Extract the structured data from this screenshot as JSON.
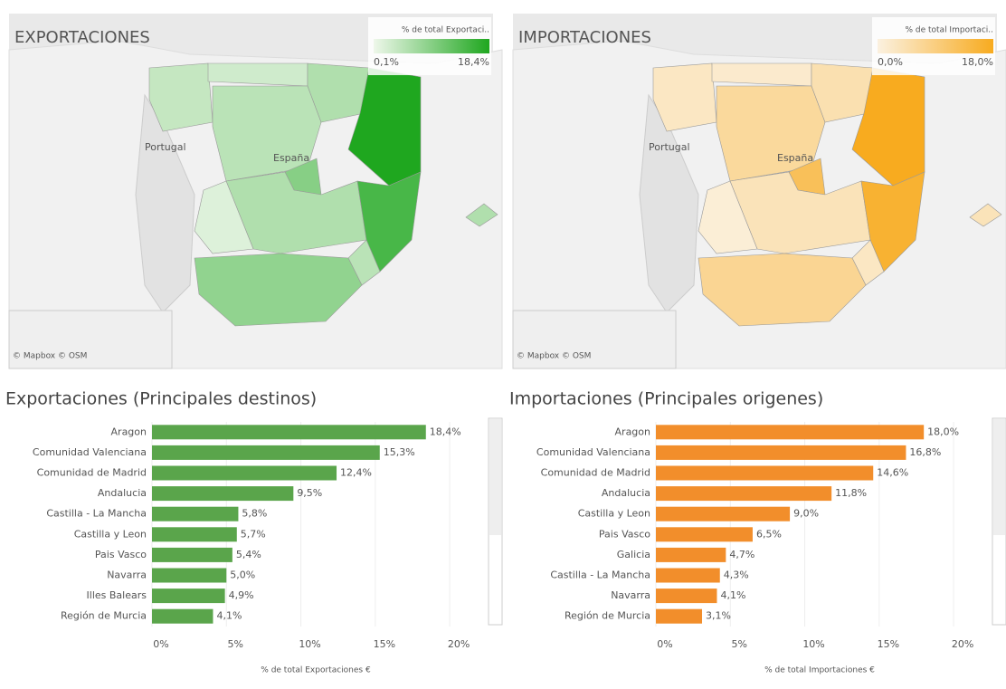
{
  "chart_data": [
    {
      "type": "map",
      "title": "EXPORTACIONES",
      "legend_title": "% de total Exportaci..",
      "color_low": "#eef7ea",
      "color": "#1fa71f",
      "legend_ticks": [
        {
          "value": 0.1,
          "label": "0,1%"
        },
        {
          "value": 18.4,
          "label": "18,4%"
        }
      ],
      "place_labels": [
        "Portugal",
        "España"
      ],
      "attribution": "© Mapbox © OSM"
    },
    {
      "type": "map",
      "title": "IMPORTACIONES",
      "legend_title": "% de total Importaci..",
      "color_low": "#fbf1e0",
      "color": "#f8ab1f",
      "legend_ticks": [
        {
          "value": 0.0,
          "label": "0,0%"
        },
        {
          "value": 18.0,
          "label": "18,0%"
        }
      ],
      "place_labels": [
        "Portugal",
        "España"
      ],
      "attribution": "© Mapbox © OSM"
    },
    {
      "type": "bar",
      "orientation": "horizontal",
      "title": "Exportaciones (Principales destinos)",
      "color": "#5aa54b",
      "categories": [
        "Aragon",
        "Comunidad Valenciana",
        "Comunidad de Madrid",
        "Andalucia",
        "Castilla - La Mancha",
        "Castilla y Leon",
        "Pais Vasco",
        "Navarra",
        "Illes Balears",
        "Región de Murcia"
      ],
      "values": [
        18.4,
        15.3,
        12.4,
        9.5,
        5.8,
        5.7,
        5.4,
        5.0,
        4.9,
        4.1
      ],
      "value_labels": [
        "18,4%",
        "15,3%",
        "12,4%",
        "9,5%",
        "5,8%",
        "5,7%",
        "5,4%",
        "5,0%",
        "4,9%",
        "4,1%"
      ],
      "xlim": [
        0,
        22
      ],
      "xticks": [
        {
          "value": 0,
          "label": "0%"
        },
        {
          "value": 5,
          "label": "5%"
        },
        {
          "value": 10,
          "label": "10%"
        },
        {
          "value": 15,
          "label": "15%"
        },
        {
          "value": 20,
          "label": "20%"
        }
      ],
      "x_label": "% de total Exportaciones €",
      "grid": true
    },
    {
      "type": "bar",
      "orientation": "horizontal",
      "title": "Importaciones (Principales origenes)",
      "color": "#f28e2b",
      "categories": [
        "Aragon",
        "Comunidad Valenciana",
        "Comunidad de Madrid",
        "Andalucia",
        "Castilla y Leon",
        "Pais Vasco",
        "Galicia",
        "Castilla - La Mancha",
        "Navarra",
        "Región de Murcia"
      ],
      "values": [
        18.0,
        16.8,
        14.6,
        11.8,
        9.0,
        6.5,
        4.7,
        4.3,
        4.1,
        3.1
      ],
      "value_labels": [
        "18,0%",
        "16,8%",
        "14,6%",
        "11,8%",
        "9,0%",
        "6,5%",
        "4,7%",
        "4,3%",
        "4,1%",
        "3,1%"
      ],
      "xlim": [
        0,
        22
      ],
      "xticks": [
        {
          "value": 0,
          "label": "0%"
        },
        {
          "value": 5,
          "label": "5%"
        },
        {
          "value": 10,
          "label": "10%"
        },
        {
          "value": 15,
          "label": "15%"
        },
        {
          "value": 20,
          "label": "20%"
        }
      ],
      "x_label": "% de total Importaciones €",
      "grid": true
    }
  ]
}
